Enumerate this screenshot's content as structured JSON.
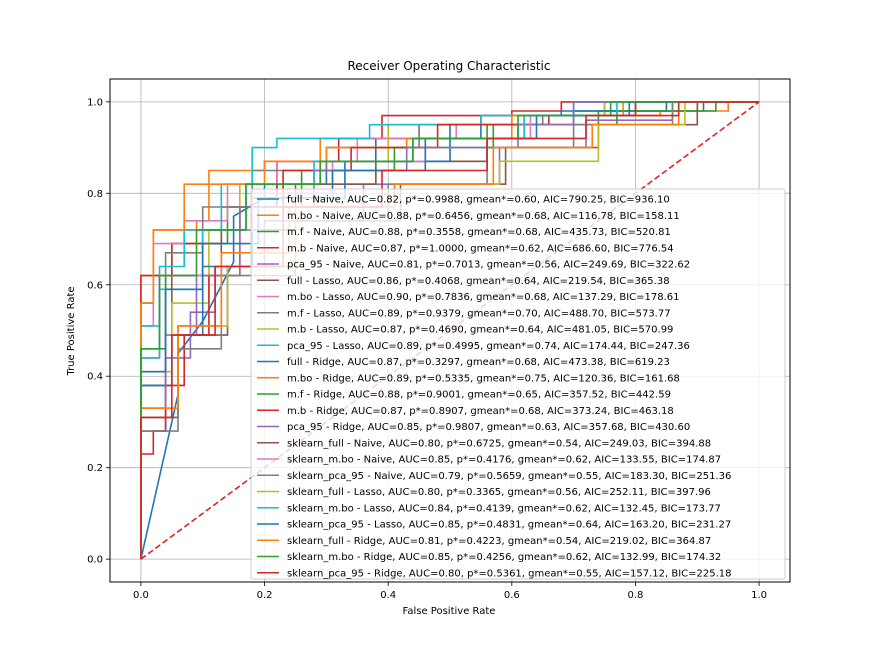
{
  "chart_data": {
    "type": "line",
    "title": "Receiver Operating Characteristic",
    "xlabel": "False Positive Rate",
    "ylabel": "True Positive Rate",
    "xlim": [
      -0.05,
      1.05
    ],
    "ylim": [
      -0.05,
      1.05
    ],
    "xticks": [
      0.0,
      0.2,
      0.4,
      0.6,
      0.8,
      1.0
    ],
    "yticks": [
      0.0,
      0.2,
      0.4,
      0.6,
      0.8,
      1.0
    ],
    "xtick_labels": [
      "0.0",
      "0.2",
      "0.4",
      "0.6",
      "0.8",
      "1.0"
    ],
    "ytick_labels": [
      "0.0",
      "0.2",
      "0.4",
      "0.6",
      "0.8",
      "1.0"
    ],
    "grid": true,
    "legend_position": "lower-right",
    "diagonal": {
      "x": [
        0,
        1
      ],
      "y": [
        0,
        1
      ],
      "color": "#d62728",
      "style": "dashed"
    },
    "series": [
      {
        "name": "full - Naive, AUC=0.82, p*=0.9988, gmean*=0.60, AIC=790.25, BIC=936.10",
        "color": "#1f77b4",
        "x": [
          0,
          0.0,
          0.06,
          0.06,
          0.1,
          0.15,
          0.15,
          0.2,
          0.2,
          0.3,
          0.3,
          0.38,
          0.38,
          0.55,
          0.55,
          0.68,
          0.68,
          0.91,
          0.91,
          1.0
        ],
        "y": [
          0,
          0.0,
          0.36,
          0.45,
          0.52,
          0.65,
          0.75,
          0.79,
          0.82,
          0.82,
          0.87,
          0.87,
          0.92,
          0.92,
          0.97,
          0.97,
          0.98,
          0.98,
          1.0,
          1.0
        ]
      },
      {
        "name": "m.bo - Naive, AUC=0.88, p*=0.6456, gmean*=0.68, AIC=116.78, BIC=158.11",
        "color": "#ff7f0e",
        "x": [
          0,
          0.0,
          0.0,
          0.02,
          0.02,
          0.05,
          0.05,
          0.09,
          0.09,
          0.11,
          0.11,
          0.2,
          0.2,
          0.29,
          0.29,
          0.45,
          0.45,
          0.6,
          0.6,
          0.84,
          0.84,
          0.95,
          0.95,
          1.0
        ],
        "y": [
          0,
          0.0,
          0.62,
          0.62,
          0.72,
          0.72,
          0.72,
          0.72,
          0.74,
          0.74,
          0.85,
          0.85,
          0.87,
          0.87,
          0.92,
          0.92,
          0.95,
          0.95,
          0.97,
          0.97,
          0.98,
          0.98,
          1.0,
          1.0
        ]
      },
      {
        "name": "m.f - Naive, AUC=0.88, p*=0.3558, gmean*=0.68, AIC=435.73, BIC=520.81",
        "color": "#2ca02c",
        "x": [
          0,
          0.0,
          0.0,
          0.02,
          0.02,
          0.05,
          0.05,
          0.14,
          0.14,
          0.22,
          0.22,
          0.38,
          0.38,
          0.56,
          0.56,
          0.74,
          0.74,
          0.93,
          0.93,
          1.0
        ],
        "y": [
          0,
          0.0,
          0.56,
          0.56,
          0.62,
          0.62,
          0.69,
          0.69,
          0.77,
          0.77,
          0.82,
          0.82,
          0.87,
          0.87,
          0.95,
          0.95,
          0.98,
          0.98,
          1.0,
          1.0
        ]
      },
      {
        "name": "m.b - Naive, AUC=0.87, p*=1.0000, gmean*=0.62, AIC=686.60, BIC=776.54",
        "color": "#d62728",
        "x": [
          0,
          0.0,
          0.0,
          0.05,
          0.05,
          0.13,
          0.13,
          0.22,
          0.22,
          0.32,
          0.32,
          0.39,
          0.39,
          0.6,
          0.6,
          0.68,
          0.68,
          0.74,
          0.74,
          1.0
        ],
        "y": [
          0,
          0.0,
          0.62,
          0.62,
          0.69,
          0.69,
          0.77,
          0.77,
          0.87,
          0.87,
          0.92,
          0.92,
          0.97,
          0.97,
          0.98,
          0.98,
          1.0,
          1.0,
          1.0,
          1.0
        ]
      },
      {
        "name": "pca_95 - Naive, AUC=0.81, p*=0.7013, gmean*=0.56, AIC=249.69, BIC=322.62",
        "color": "#9467bd",
        "x": [
          0,
          0.0,
          0.0,
          0.04,
          0.04,
          0.08,
          0.08,
          0.12,
          0.12,
          0.2,
          0.2,
          0.36,
          0.36,
          0.58,
          0.58,
          0.72,
          0.72,
          0.86,
          0.86,
          1.0
        ],
        "y": [
          0,
          0.0,
          0.28,
          0.28,
          0.44,
          0.44,
          0.54,
          0.54,
          0.64,
          0.64,
          0.74,
          0.74,
          0.82,
          0.82,
          0.9,
          0.9,
          0.96,
          0.96,
          1.0,
          1.0
        ]
      },
      {
        "name": "full - Lasso, AUC=0.86, p*=0.4068, gmean*=0.64, AIC=219.54, BIC=365.38",
        "color": "#8c564b",
        "x": [
          0,
          0.0,
          0.0,
          0.05,
          0.05,
          0.13,
          0.13,
          0.25,
          0.25,
          0.38,
          0.38,
          0.56,
          0.56,
          0.62,
          0.62,
          0.75,
          0.75,
          1.0
        ],
        "y": [
          0,
          0.0,
          0.38,
          0.38,
          0.62,
          0.62,
          0.72,
          0.72,
          0.82,
          0.82,
          0.87,
          0.87,
          0.92,
          0.92,
          0.97,
          0.97,
          1.0,
          1.0
        ]
      },
      {
        "name": "m.bo - Lasso, AUC=0.90, p*=0.7836, gmean*=0.68, AIC=137.29, BIC=178.61",
        "color": "#e377c2",
        "x": [
          0,
          0.0,
          0.0,
          0.02,
          0.02,
          0.07,
          0.07,
          0.14,
          0.14,
          0.22,
          0.22,
          0.35,
          0.35,
          0.51,
          0.51,
          0.65,
          0.65,
          0.8,
          0.8,
          1.0
        ],
        "y": [
          0,
          0.0,
          0.51,
          0.51,
          0.69,
          0.69,
          0.74,
          0.74,
          0.82,
          0.82,
          0.87,
          0.87,
          0.92,
          0.92,
          0.95,
          0.95,
          0.97,
          0.97,
          1.0,
          1.0
        ]
      },
      {
        "name": "m.f - Lasso, AUC=0.89, p*=0.9379, gmean*=0.70, AIC=488.70, BIC=573.77",
        "color": "#7f7f7f",
        "x": [
          0,
          0.0,
          0.0,
          0.04,
          0.04,
          0.1,
          0.1,
          0.18,
          0.18,
          0.3,
          0.3,
          0.45,
          0.45,
          0.65,
          0.65,
          0.8,
          0.8,
          1.0
        ],
        "y": [
          0,
          0.0,
          0.38,
          0.38,
          0.67,
          0.67,
          0.77,
          0.77,
          0.85,
          0.85,
          0.9,
          0.9,
          0.95,
          0.95,
          0.97,
          0.97,
          1.0,
          1.0
        ]
      },
      {
        "name": "m.b - Lasso, AUC=0.87, p*=0.4690, gmean*=0.64, AIC=481.05, BIC=570.99",
        "color": "#bcbd22",
        "x": [
          0,
          0.0,
          0.0,
          0.05,
          0.05,
          0.11,
          0.11,
          0.16,
          0.16,
          0.29,
          0.29,
          0.4,
          0.4,
          0.6,
          0.6,
          0.75,
          0.75,
          0.85,
          0.85,
          1.0
        ],
        "y": [
          0,
          0.0,
          0.41,
          0.41,
          0.56,
          0.56,
          0.72,
          0.72,
          0.82,
          0.82,
          0.87,
          0.87,
          0.95,
          0.95,
          0.97,
          0.97,
          1.0,
          1.0,
          1.0,
          1.0
        ]
      },
      {
        "name": "pca_95 - Lasso, AUC=0.89, p*=0.4995, gmean*=0.74, AIC=174.44, BIC=247.36",
        "color": "#17becf",
        "x": [
          0,
          0.0,
          0.0,
          0.03,
          0.03,
          0.07,
          0.07,
          0.13,
          0.13,
          0.18,
          0.18,
          0.22,
          0.22,
          0.37,
          0.37,
          0.55,
          0.55,
          0.7,
          0.7,
          1.0
        ],
        "y": [
          0,
          0.0,
          0.51,
          0.51,
          0.64,
          0.64,
          0.72,
          0.72,
          0.82,
          0.82,
          0.9,
          0.9,
          0.92,
          0.92,
          0.95,
          0.95,
          0.97,
          0.97,
          1.0,
          1.0
        ]
      },
      {
        "name": "full - Ridge, AUC=0.87, p*=0.3297, gmean*=0.68, AIC=473.38, BIC=619.23",
        "color": "#1f77b4",
        "x": [
          0,
          0.0,
          0.0,
          0.05,
          0.05,
          0.1,
          0.1,
          0.18,
          0.18,
          0.33,
          0.33,
          0.5,
          0.5,
          0.7,
          0.7,
          0.85,
          0.85,
          1.0
        ],
        "y": [
          0,
          0.0,
          0.38,
          0.38,
          0.49,
          0.49,
          0.64,
          0.64,
          0.79,
          0.79,
          0.87,
          0.87,
          0.95,
          0.95,
          0.98,
          0.98,
          1.0,
          1.0
        ]
      },
      {
        "name": "m.bo - Ridge, AUC=0.89, p*=0.5335, gmean*=0.75, AIC=120.36, BIC=161.68",
        "color": "#ff7f0e",
        "x": [
          0,
          0.0,
          0.0,
          0.02,
          0.02,
          0.07,
          0.07,
          0.2,
          0.2,
          0.3,
          0.3,
          0.43,
          0.43,
          0.6,
          0.6,
          0.78,
          0.78,
          1.0
        ],
        "y": [
          0,
          0.0,
          0.56,
          0.56,
          0.72,
          0.72,
          0.82,
          0.82,
          0.87,
          0.87,
          0.9,
          0.9,
          0.92,
          0.92,
          0.97,
          0.97,
          1.0,
          1.0
        ]
      },
      {
        "name": "m.f - Ridge, AUC=0.88, p*=0.9001, gmean*=0.65, AIC=357.52, BIC=442.59",
        "color": "#2ca02c",
        "x": [
          0,
          0.0,
          0.0,
          0.04,
          0.04,
          0.1,
          0.1,
          0.16,
          0.16,
          0.26,
          0.26,
          0.41,
          0.41,
          0.57,
          0.57,
          0.77,
          0.77,
          0.9,
          0.9,
          1.0
        ],
        "y": [
          0,
          0.0,
          0.46,
          0.46,
          0.62,
          0.62,
          0.72,
          0.72,
          0.77,
          0.77,
          0.85,
          0.85,
          0.9,
          0.9,
          0.95,
          0.95,
          0.98,
          0.98,
          1.0,
          1.0
        ]
      },
      {
        "name": "m.b - Ridge, AUC=0.87, p*=0.8907, gmean*=0.68, AIC=373.24, BIC=463.18",
        "color": "#d62728",
        "x": [
          0,
          0.0,
          0.0,
          0.02,
          0.02,
          0.04,
          0.04,
          0.07,
          0.07,
          0.11,
          0.11,
          0.16,
          0.16,
          0.23,
          0.23,
          0.34,
          0.34,
          0.48,
          0.48,
          0.66,
          0.66,
          0.8,
          0.8,
          1.0
        ],
        "y": [
          0,
          0.0,
          0.23,
          0.23,
          0.28,
          0.28,
          0.38,
          0.38,
          0.49,
          0.49,
          0.62,
          0.62,
          0.77,
          0.77,
          0.85,
          0.85,
          0.9,
          0.9,
          0.95,
          0.95,
          0.97,
          0.97,
          1.0,
          1.0
        ]
      },
      {
        "name": "pca_95 - Ridge, AUC=0.85, p*=0.9807, gmean*=0.63, AIC=357.68, BIC=430.60",
        "color": "#9467bd",
        "x": [
          0,
          0.0,
          0.0,
          0.04,
          0.04,
          0.09,
          0.09,
          0.16,
          0.16,
          0.28,
          0.28,
          0.43,
          0.43,
          0.61,
          0.61,
          0.7,
          0.7,
          0.83,
          0.83,
          1.0
        ],
        "y": [
          0,
          0.0,
          0.33,
          0.33,
          0.49,
          0.49,
          0.62,
          0.62,
          0.77,
          0.77,
          0.85,
          0.85,
          0.9,
          0.9,
          0.95,
          0.95,
          1.0,
          1.0,
          1.0,
          1.0
        ]
      },
      {
        "name": "sklearn_full - Naive, AUC=0.80, p*=0.6725, gmean*=0.54, AIC=249.03, BIC=394.88",
        "color": "#8c564b",
        "x": [
          0,
          0.0,
          0.0,
          0.06,
          0.06,
          0.14,
          0.14,
          0.25,
          0.25,
          0.42,
          0.42,
          0.59,
          0.59,
          0.74,
          0.74,
          0.9,
          0.9,
          1.0
        ],
        "y": [
          0,
          0.0,
          0.31,
          0.31,
          0.49,
          0.49,
          0.64,
          0.64,
          0.74,
          0.74,
          0.82,
          0.82,
          0.9,
          0.9,
          0.95,
          0.95,
          1.0,
          1.0
        ]
      },
      {
        "name": "sklearn_m.bo - Naive, AUC=0.85, p*=0.4176, gmean*=0.62, AIC=133.55, BIC=174.87",
        "color": "#e377c2",
        "x": [
          0,
          0.0,
          0.0,
          0.03,
          0.03,
          0.1,
          0.1,
          0.18,
          0.18,
          0.31,
          0.31,
          0.46,
          0.46,
          0.63,
          0.63,
          0.76,
          0.76,
          1.0
        ],
        "y": [
          0,
          0.0,
          0.44,
          0.44,
          0.62,
          0.62,
          0.72,
          0.72,
          0.8,
          0.8,
          0.87,
          0.87,
          0.92,
          0.92,
          0.97,
          0.97,
          1.0,
          1.0
        ]
      },
      {
        "name": "sklearn_pca_95 - Naive, AUC=0.79, p*=0.5659, gmean*=0.55, AIC=183.30, BIC=251.36",
        "color": "#7f7f7f",
        "x": [
          0,
          0.0,
          0.0,
          0.06,
          0.06,
          0.13,
          0.13,
          0.25,
          0.25,
          0.4,
          0.4,
          0.56,
          0.56,
          0.7,
          0.7,
          0.86,
          0.86,
          1.0
        ],
        "y": [
          0,
          0.0,
          0.28,
          0.28,
          0.46,
          0.46,
          0.62,
          0.62,
          0.74,
          0.74,
          0.82,
          0.82,
          0.9,
          0.9,
          0.95,
          0.95,
          1.0,
          1.0
        ]
      },
      {
        "name": "sklearn_full - Lasso, AUC=0.80, p*=0.3365, gmean*=0.56, AIC=252.11, BIC=397.96",
        "color": "#bcbd22",
        "x": [
          0,
          0.0,
          0.0,
          0.06,
          0.06,
          0.14,
          0.14,
          0.25,
          0.25,
          0.41,
          0.41,
          0.58,
          0.58,
          0.74,
          0.74,
          0.88,
          0.88,
          1.0
        ],
        "y": [
          0,
          0.0,
          0.33,
          0.33,
          0.51,
          0.51,
          0.64,
          0.64,
          0.77,
          0.77,
          0.82,
          0.82,
          0.87,
          0.87,
          0.95,
          0.95,
          1.0,
          1.0
        ]
      },
      {
        "name": "sklearn_m.bo - Lasso, AUC=0.84, p*=0.4139, gmean*=0.62, AIC=132.45, BIC=173.77",
        "color": "#17becf",
        "x": [
          0,
          0.0,
          0.0,
          0.03,
          0.03,
          0.1,
          0.1,
          0.17,
          0.17,
          0.28,
          0.28,
          0.44,
          0.44,
          0.62,
          0.62,
          0.77,
          0.77,
          1.0
        ],
        "y": [
          0,
          0.0,
          0.44,
          0.44,
          0.59,
          0.59,
          0.72,
          0.72,
          0.82,
          0.82,
          0.87,
          0.87,
          0.92,
          0.92,
          0.97,
          0.97,
          1.0,
          1.0
        ]
      },
      {
        "name": "sklearn_pca_95 - Lasso, AUC=0.85, p*=0.4831, gmean*=0.64, AIC=163.20, BIC=231.27",
        "color": "#1f77b4",
        "x": [
          0,
          0.0,
          0.0,
          0.04,
          0.04,
          0.1,
          0.1,
          0.19,
          0.19,
          0.31,
          0.31,
          0.46,
          0.46,
          0.64,
          0.64,
          0.79,
          0.79,
          1.0
        ],
        "y": [
          0,
          0.0,
          0.41,
          0.41,
          0.59,
          0.59,
          0.69,
          0.69,
          0.79,
          0.79,
          0.85,
          0.85,
          0.92,
          0.92,
          0.97,
          0.97,
          1.0,
          1.0
        ]
      },
      {
        "name": "sklearn_full - Ridge, AUC=0.81, p*=0.4223, gmean*=0.54, AIC=219.02, BIC=364.87",
        "color": "#ff7f0e",
        "x": [
          0,
          0.0,
          0.0,
          0.06,
          0.06,
          0.13,
          0.13,
          0.24,
          0.24,
          0.41,
          0.41,
          0.57,
          0.57,
          0.73,
          0.73,
          0.87,
          0.87,
          1.0
        ],
        "y": [
          0,
          0.0,
          0.33,
          0.33,
          0.51,
          0.51,
          0.67,
          0.67,
          0.77,
          0.77,
          0.82,
          0.82,
          0.9,
          0.9,
          0.95,
          0.95,
          1.0,
          1.0
        ]
      },
      {
        "name": "sklearn_m.bo - Ridge, AUC=0.85, p*=0.4256, gmean*=0.62, AIC=132.99, BIC=174.32",
        "color": "#2ca02c",
        "x": [
          0,
          0.0,
          0.0,
          0.03,
          0.03,
          0.09,
          0.09,
          0.17,
          0.17,
          0.29,
          0.29,
          0.44,
          0.44,
          0.61,
          0.61,
          0.76,
          0.76,
          1.0
        ],
        "y": [
          0,
          0.0,
          0.46,
          0.46,
          0.62,
          0.62,
          0.72,
          0.72,
          0.82,
          0.82,
          0.87,
          0.87,
          0.92,
          0.92,
          0.97,
          0.97,
          1.0,
          1.0
        ]
      },
      {
        "name": "sklearn_pca_95 - Ridge, AUC=0.80, p*=0.5361, gmean*=0.55, AIC=157.12, BIC=225.18",
        "color": "#d62728",
        "x": [
          0,
          0.0,
          0.0,
          0.05,
          0.05,
          0.12,
          0.12,
          0.23,
          0.23,
          0.39,
          0.39,
          0.56,
          0.56,
          0.72,
          0.72,
          0.87,
          0.87,
          1.0
        ],
        "y": [
          0,
          0.0,
          0.31,
          0.31,
          0.49,
          0.49,
          0.64,
          0.64,
          0.77,
          0.77,
          0.85,
          0.85,
          0.92,
          0.92,
          0.97,
          0.97,
          1.0,
          1.0
        ]
      }
    ]
  }
}
